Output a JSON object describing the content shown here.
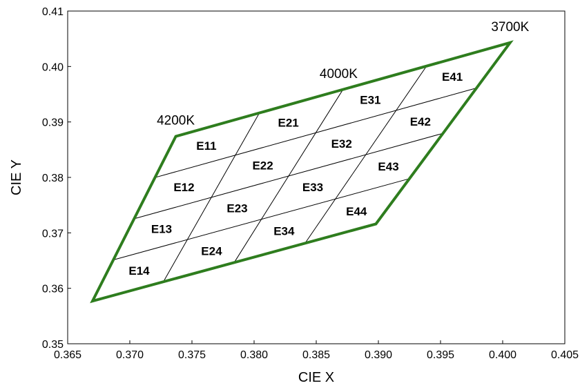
{
  "chart_data": {
    "type": "diagram-grid",
    "xlabel": "CIE X",
    "ylabel": "CIE Y",
    "xlim": [
      0.365,
      0.405
    ],
    "ylim": [
      0.35,
      0.41
    ],
    "x_ticks": [
      "0.365",
      "0.370",
      "0.375",
      "0.380",
      "0.385",
      "0.390",
      "0.395",
      "0.400",
      "0.405"
    ],
    "y_ticks": [
      "0.35",
      "0.36",
      "0.37",
      "0.38",
      "0.39",
      "0.40",
      "0.41"
    ],
    "grid": false,
    "outline_color": "#2e7d1e",
    "quad": {
      "top_left": [
        0.3737,
        0.3874
      ],
      "top_right": [
        0.4006,
        0.4043
      ],
      "bottom_right": [
        0.3898,
        0.3716
      ],
      "bottom_left": [
        0.367,
        0.3577
      ]
    },
    "divisions": 4,
    "bins": [
      [
        "E11",
        "E21",
        "E31",
        "E41"
      ],
      [
        "E12",
        "E22",
        "E32",
        "E42"
      ],
      [
        "E13",
        "E23",
        "E33",
        "E43"
      ],
      [
        "E14",
        "E24",
        "E34",
        "E44"
      ]
    ],
    "cct_labels": [
      {
        "text": "4200K",
        "x": 0.3737,
        "y": 0.3874
      },
      {
        "text": "4000K",
        "x": 0.3868,
        "y": 0.3958
      },
      {
        "text": "3700K",
        "x": 0.4006,
        "y": 0.4043
      }
    ]
  }
}
